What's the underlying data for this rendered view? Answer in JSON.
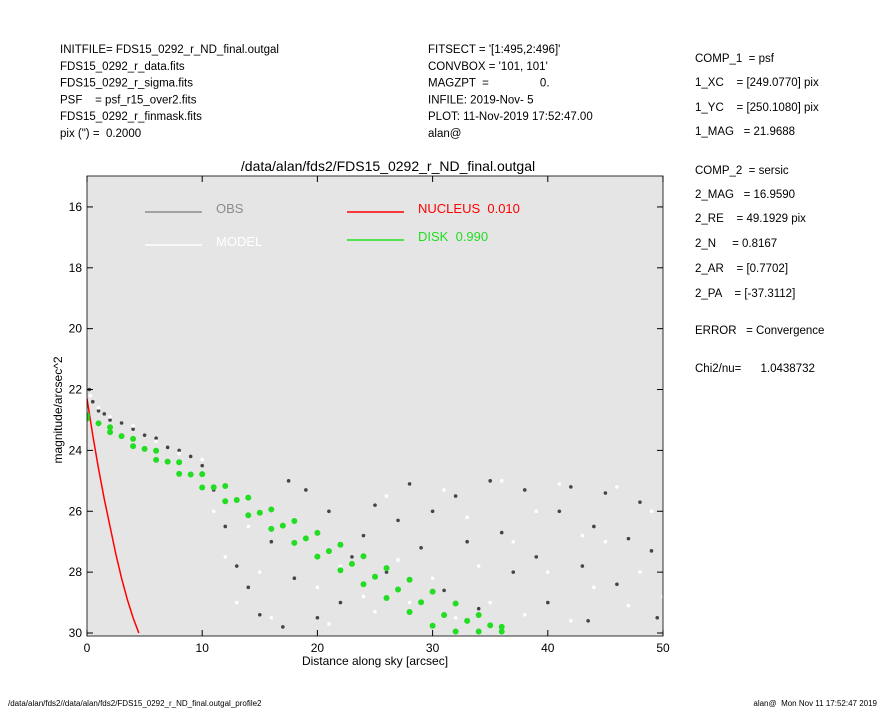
{
  "header": {
    "left": [
      "INITFILE= FDS15_0292_r_ND_final.outgal",
      "FDS15_0292_r_data.fits",
      "FDS15_0292_r_sigma.fits",
      "PSF    = psf_r15_over2.fits",
      "FDS15_0292_r_finmask.fits",
      "pix (\") =  0.2000"
    ],
    "middle": [
      "FITSECT = '[1:495,2:496]'",
      "CONVBOX = '101, 101'",
      "MAGZPT  =                0.",
      "INFILE: 2019-Nov- 5",
      "PLOT: 11-Nov-2019 17:52:47.00",
      "alan@"
    ],
    "params": [
      "COMP_1  = psf",
      "1_XC    = [249.0770] pix",
      "1_YC    = [250.1080] pix",
      "1_MAG   = 21.9688",
      "COMP_2  = sersic",
      "2_MAG   = 16.9590",
      "2_RE    = 49.1929 pix",
      "2_N     = 0.8167",
      "2_AR    = [0.7702]",
      "2_PA    = [-37.3112]",
      "ERROR   = Convergence",
      "Chi2/nu=      1.0438732"
    ]
  },
  "footer": {
    "left": "/data/alan/fds2//data/alan/fds2/FDS15_0292_r_ND_final.outgal_profile2",
    "right": "alan@  Mon Nov 11 17:52:47 2019"
  },
  "chart_data": {
    "type": "scatter",
    "title": "/data/alan/fds2/FDS15_0292_r_ND_final.outgal",
    "x_label": "Distance along sky [arcsec]",
    "y_label": "magnitude/arcsec^2",
    "xlim": [
      0,
      50
    ],
    "ylim": [
      30,
      15
    ],
    "xticks": [
      0,
      10,
      20,
      30,
      40,
      50
    ],
    "yticks": [
      16,
      18,
      20,
      22,
      24,
      26,
      28,
      30
    ],
    "background": "#e5e5e5",
    "series": [
      {
        "name": "OBS",
        "mode": "points",
        "color": "#444444",
        "legend_color": "#8c8c8c",
        "x": [
          0.2,
          0.5,
          1,
          1.5,
          2,
          3,
          4,
          5,
          6,
          7,
          8,
          9,
          10,
          11,
          12,
          13,
          14,
          15,
          16,
          17,
          18,
          20,
          22,
          23,
          24,
          25,
          26,
          27,
          28,
          29,
          30,
          31,
          32,
          33,
          34,
          35,
          36,
          37,
          38,
          39,
          40,
          41,
          42,
          43,
          44,
          45,
          46,
          47,
          48,
          49,
          49.5,
          43.5,
          21,
          19,
          17.5
        ],
        "values": [
          22.0,
          22.4,
          22.7,
          22.8,
          23.0,
          23.1,
          23.3,
          23.5,
          23.6,
          23.9,
          24.0,
          24.2,
          24.5,
          25.3,
          26.5,
          27.8,
          28.5,
          29.4,
          27.0,
          29.8,
          28.2,
          29.5,
          29.0,
          27.5,
          26.8,
          25.8,
          28.0,
          26.3,
          25.1,
          27.2,
          26.0,
          28.6,
          25.5,
          27.0,
          29.2,
          25.0,
          26.7,
          28.0,
          25.3,
          27.5,
          29.0,
          26.0,
          25.2,
          27.8,
          26.5,
          25.4,
          28.4,
          26.9,
          25.7,
          27.3,
          29.5,
          29.6,
          26.0,
          25.3,
          25.0
        ]
      },
      {
        "name": "MODEL",
        "mode": "points",
        "color": "#ffffff",
        "legend_color": "#ffffff",
        "x": [
          0.3,
          1,
          2,
          4,
          6,
          8,
          10,
          11,
          12,
          13,
          14,
          15,
          16,
          18,
          20,
          21,
          22,
          24,
          25,
          26,
          27,
          28,
          30,
          31,
          32,
          33,
          34,
          35,
          36,
          37,
          38,
          39,
          40,
          41,
          42,
          43,
          44,
          45,
          46,
          47,
          48,
          49,
          50
        ],
        "values": [
          22.2,
          22.6,
          22.9,
          23.2,
          23.7,
          24.1,
          24.3,
          26.0,
          27.5,
          29.0,
          26.5,
          28.0,
          29.5,
          27.0,
          28.5,
          29.7,
          27.8,
          28.8,
          29.3,
          25.5,
          27.6,
          29.0,
          28.2,
          25.3,
          29.5,
          26.2,
          27.8,
          29.0,
          25.0,
          27.0,
          29.4,
          26.0,
          28.0,
          25.1,
          29.6,
          26.8,
          28.5,
          27.0,
          25.2,
          29.1,
          28.0,
          26.0,
          28.8
        ]
      },
      {
        "name": "NUCLEUS  0.010",
        "mode": "line",
        "color": "#ff0000",
        "legend_color": "#ff0000",
        "x": [
          0,
          0.5,
          1,
          1.5,
          2,
          2.5,
          3,
          3.5,
          4,
          4.5
        ],
        "values": [
          22.3,
          23.5,
          24.6,
          25.6,
          26.5,
          27.4,
          28.2,
          28.9,
          29.5,
          30.0
        ]
      },
      {
        "name": "DISK  0.990",
        "mode": "points",
        "color": "#22dd22",
        "legend_color": "#22dd22",
        "x": [
          0,
          0,
          1,
          2,
          2,
          3,
          4,
          4,
          5,
          6,
          6,
          7,
          8,
          8,
          9,
          10,
          10,
          11,
          12,
          12,
          13,
          14,
          14,
          15,
          16,
          16,
          17,
          18,
          18,
          19,
          20,
          20,
          21,
          22,
          22,
          23,
          24,
          24,
          25,
          26,
          26,
          27,
          28,
          28,
          29,
          30,
          30,
          31,
          32,
          32,
          33,
          34,
          34,
          35,
          36,
          36
        ],
        "values": [
          22.85,
          22.95,
          23.11,
          23.24,
          23.4,
          23.53,
          23.62,
          23.86,
          23.95,
          24.01,
          24.31,
          24.37,
          24.39,
          24.77,
          24.79,
          24.78,
          25.22,
          25.21,
          25.17,
          25.67,
          25.63,
          25.55,
          26.13,
          26.05,
          25.94,
          26.58,
          26.47,
          26.32,
          27.04,
          26.89,
          26.71,
          27.49,
          27.31,
          27.1,
          27.94,
          27.73,
          27.48,
          28.4,
          28.15,
          27.87,
          28.85,
          28.57,
          28.25,
          29.31,
          28.99,
          28.64,
          29.76,
          29.41,
          29.03,
          29.95,
          29.6,
          29.41,
          29.95,
          29.75,
          29.8,
          29.95
        ]
      }
    ]
  }
}
